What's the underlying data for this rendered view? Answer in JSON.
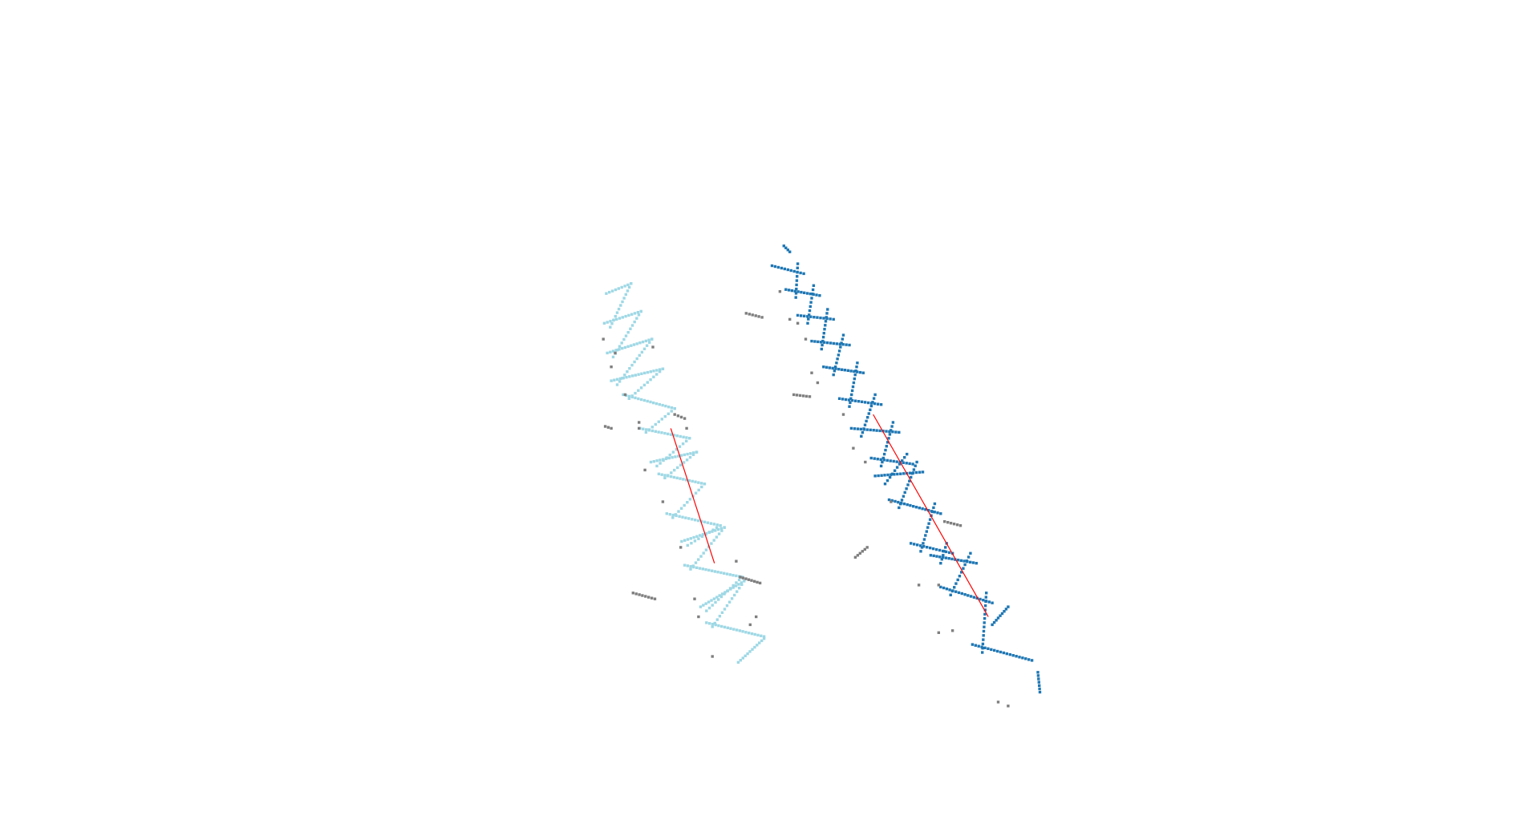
{
  "view": {
    "background": "#ffffff",
    "clusters": [
      {
        "name": "light-blue-cluster",
        "color": "#9ed8e5",
        "rung_count": 13,
        "axis_color": "#ff0000"
      },
      {
        "name": "dark-blue-cluster",
        "color": "#1f77b4",
        "rung_count": 15,
        "axis_color": "#ff0000"
      }
    ],
    "outlier_color": "#7f7f7f"
  }
}
